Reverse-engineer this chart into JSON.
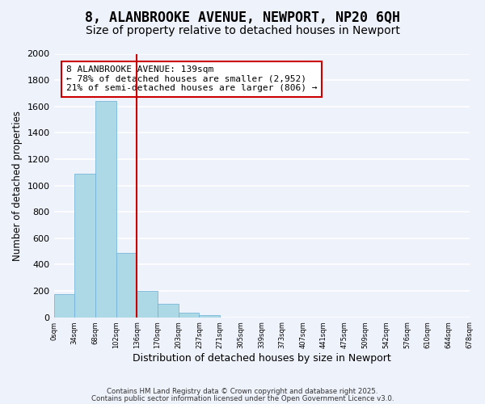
{
  "title": "8, ALANBROOKE AVENUE, NEWPORT, NP20 6QH",
  "subtitle": "Size of property relative to detached houses in Newport",
  "bar_values": [
    175,
    1090,
    1640,
    490,
    200,
    100,
    35,
    15,
    0,
    0,
    0,
    0,
    0,
    0,
    0,
    0,
    0,
    0,
    0,
    0
  ],
  "bar_labels": [
    "0sqm",
    "34sqm",
    "68sqm",
    "102sqm",
    "136sqm",
    "170sqm",
    "203sqm",
    "237sqm",
    "271sqm",
    "305sqm",
    "339sqm",
    "373sqm",
    "407sqm",
    "441sqm",
    "475sqm",
    "509sqm",
    "542sqm",
    "576sqm",
    "610sqm",
    "644sqm",
    "678sqm"
  ],
  "bar_color": "#add8e6",
  "bar_edge_color": "#6baed6",
  "vline_x": 4,
  "vline_color": "#cc0000",
  "xlabel": "Distribution of detached houses by size in Newport",
  "ylabel": "Number of detached properties",
  "ylim": [
    0,
    2000
  ],
  "yticks": [
    0,
    200,
    400,
    600,
    800,
    1000,
    1200,
    1400,
    1600,
    1800,
    2000
  ],
  "annotation_title": "8 ALANBROOKE AVENUE: 139sqm",
  "annotation_line1": "← 78% of detached houses are smaller (2,952)",
  "annotation_line2": "21% of semi-detached houses are larger (806) →",
  "footer1": "Contains HM Land Registry data © Crown copyright and database right 2025.",
  "footer2": "Contains public sector information licensed under the Open Government Licence v3.0.",
  "bg_color": "#eef2fb",
  "grid_color": "#ffffff",
  "title_fontsize": 12,
  "subtitle_fontsize": 10,
  "annotation_box_color": "#ffffff",
  "annotation_box_edge": "#cc0000"
}
